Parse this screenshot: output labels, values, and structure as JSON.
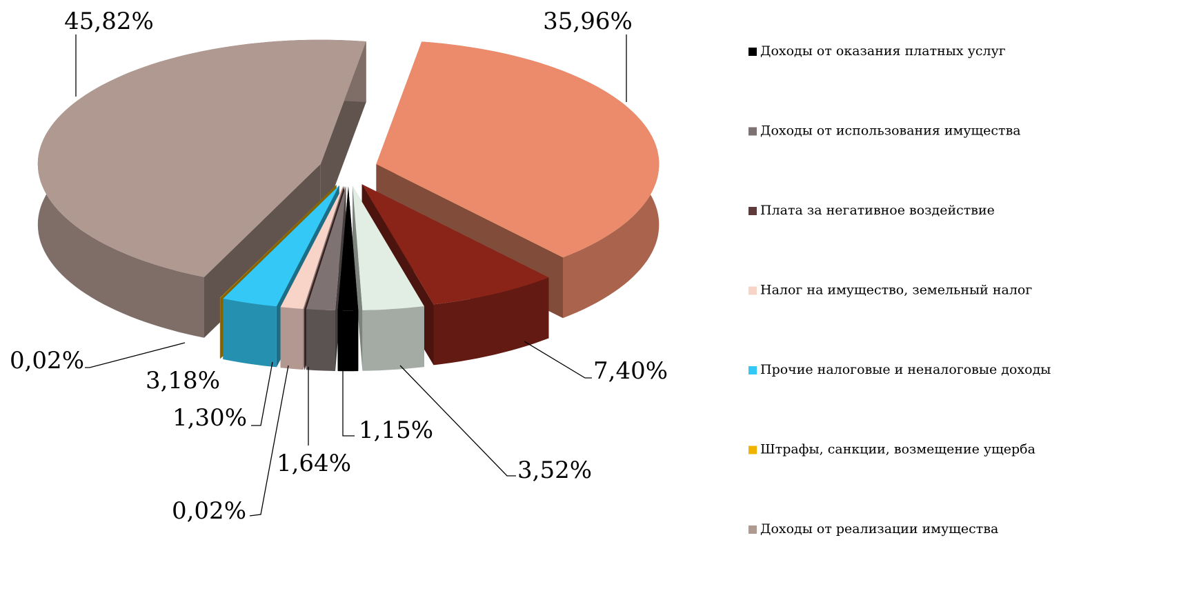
{
  "chart_data": {
    "type": "pie3d",
    "categories": [
      "Доходы от оказания платных услуг",
      "Доходы от использования имущества",
      "Плата за негативное воздействие",
      "Налог на имущество, земельный налог",
      "Прочие налоговые и неналоговые доходы",
      "Штрафы, санкции, возмещение ущерба",
      "Доходы от реализации имущества",
      null,
      null,
      null
    ],
    "values": [
      1.15,
      1.64,
      0.02,
      1.3,
      3.18,
      0.02,
      45.82,
      35.96,
      7.4,
      3.52
    ],
    "value_labels": [
      "1,15%",
      "1,64%",
      "0,02%",
      "1,30%",
      "3,18%",
      "0,02%",
      "45,82%",
      "35,96%",
      "7,40%",
      "3,52%"
    ],
    "colors": [
      "#000000",
      "#7f7272",
      "#5e3b3a",
      "#f7d3c8",
      "#33c8f5",
      "#f0b400",
      "#b09990",
      "#ec8b6c",
      "#8a2419",
      "#e2eee4"
    ],
    "legend": "right"
  }
}
